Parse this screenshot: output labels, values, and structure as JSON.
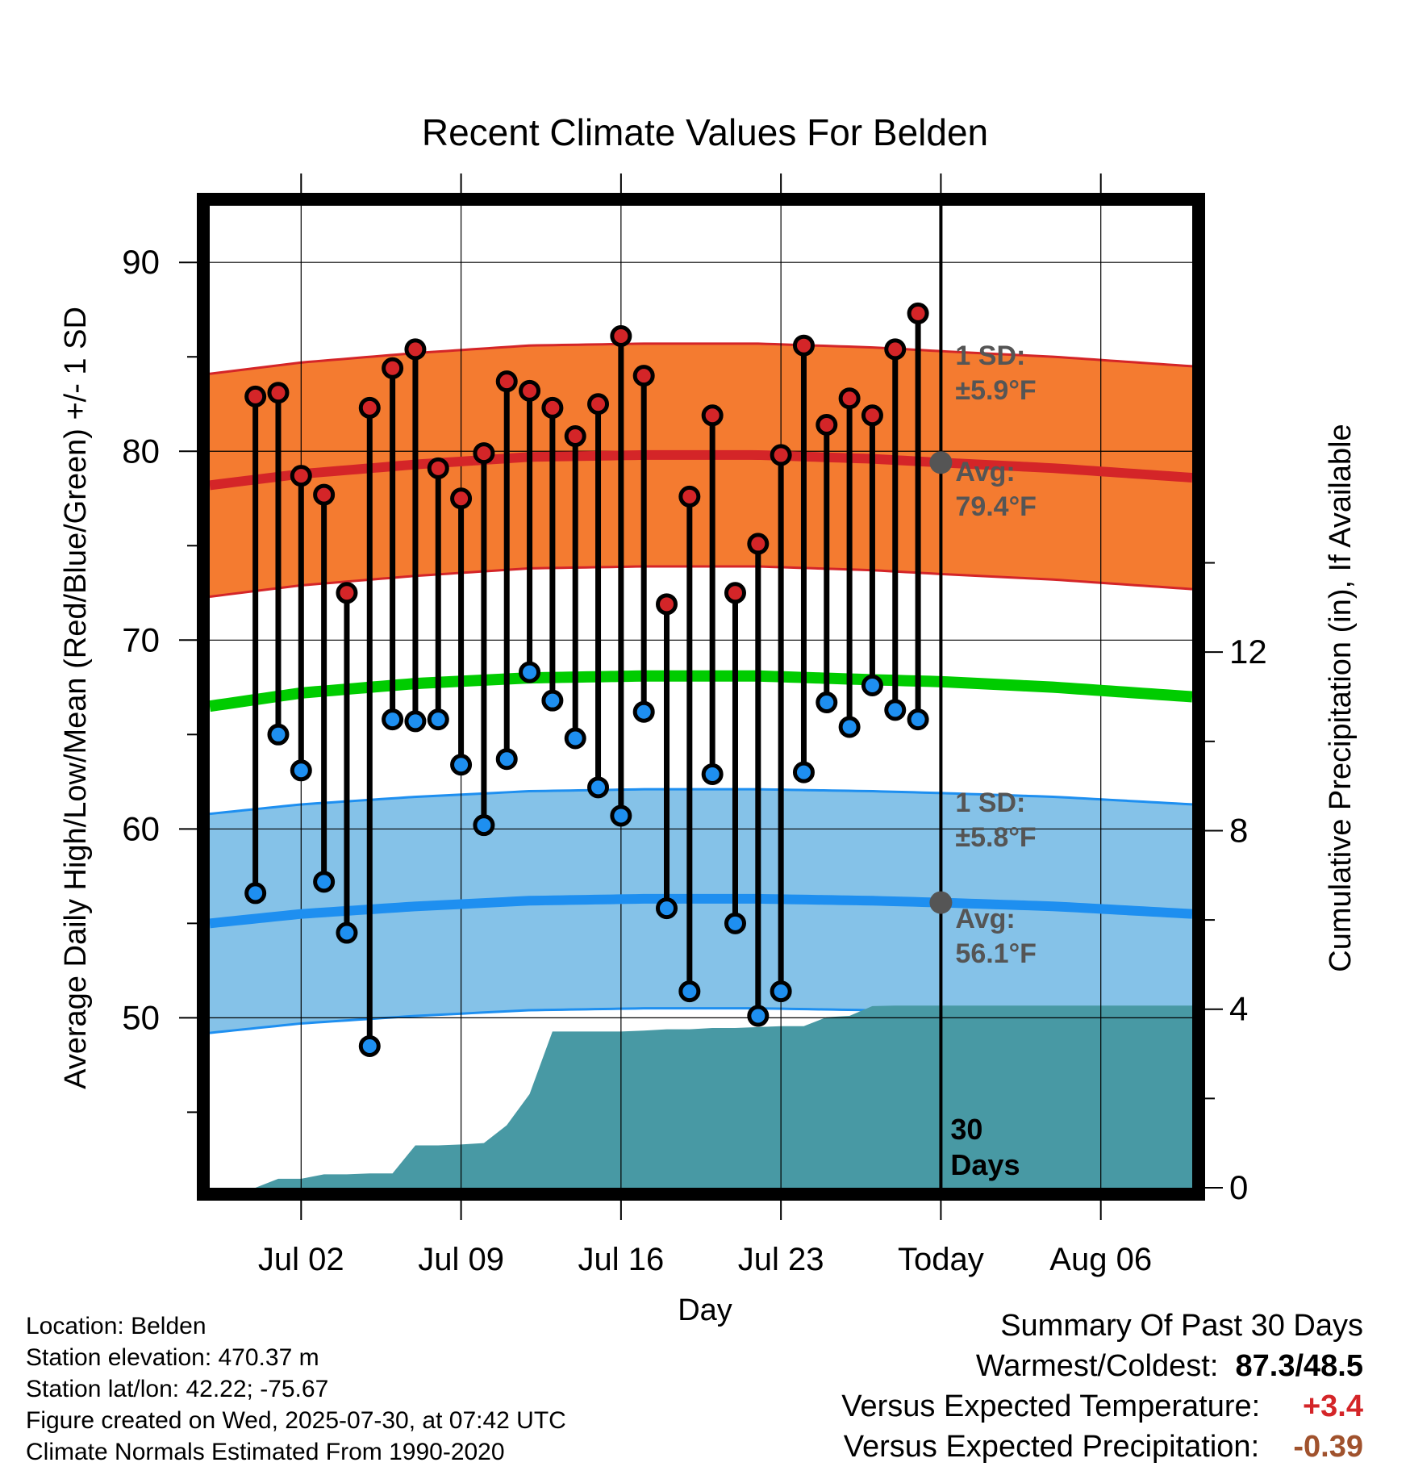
{
  "chart_data": {
    "type": "line",
    "title": "Recent Climate Values For Belden",
    "xlabel": "Day",
    "ylabel": "Average Daily High/Low/Mean (Red/Blue/Green) +/- 1 SD",
    "y2label": "Cumulative Precipitation (in), If Available",
    "x_ticks": [
      "Jul 02",
      "Jul 09",
      "Jul 16",
      "Jul 23",
      "Today",
      "Aug 06"
    ],
    "y_ticks": [
      50,
      60,
      70,
      80,
      90
    ],
    "y2_ticks": [
      0,
      4,
      8,
      12
    ],
    "ylim": [
      41,
      93
    ],
    "y2lim": [
      0,
      22
    ],
    "x_range": [
      "2025-06-28",
      "2025-08-10"
    ],
    "today": "2025-07-30",
    "dates": [
      "2025-06-30",
      "2025-07-01",
      "2025-07-02",
      "2025-07-03",
      "2025-07-04",
      "2025-07-05",
      "2025-07-06",
      "2025-07-07",
      "2025-07-08",
      "2025-07-09",
      "2025-07-10",
      "2025-07-11",
      "2025-07-12",
      "2025-07-13",
      "2025-07-14",
      "2025-07-15",
      "2025-07-16",
      "2025-07-17",
      "2025-07-18",
      "2025-07-19",
      "2025-07-20",
      "2025-07-21",
      "2025-07-22",
      "2025-07-23",
      "2025-07-24",
      "2025-07-25",
      "2025-07-26",
      "2025-07-27",
      "2025-07-28",
      "2025-07-29"
    ],
    "daily_high": [
      82.9,
      83.1,
      78.7,
      77.7,
      72.5,
      82.3,
      84.4,
      85.4,
      79.1,
      77.5,
      79.9,
      83.7,
      83.2,
      82.3,
      80.8,
      82.5,
      86.1,
      84.0,
      71.9,
      77.6,
      81.9,
      72.5,
      75.1,
      79.8,
      85.6,
      81.4,
      82.8,
      81.9,
      85.4,
      87.3
    ],
    "daily_low": [
      56.6,
      65.0,
      63.1,
      57.2,
      54.5,
      48.5,
      65.8,
      65.7,
      65.8,
      63.4,
      60.2,
      63.7,
      68.3,
      66.8,
      64.8,
      62.2,
      60.7,
      66.2,
      55.8,
      51.4,
      62.9,
      55.0,
      50.1,
      51.4,
      63.0,
      66.7,
      65.4,
      67.6,
      66.3,
      65.8
    ],
    "normal_dates": [
      "2025-06-28",
      "2025-07-02",
      "2025-07-07",
      "2025-07-12",
      "2025-07-17",
      "2025-07-22",
      "2025-07-27",
      "2025-07-30",
      "2025-08-04",
      "2025-08-10"
    ],
    "normal_high": [
      78.2,
      78.8,
      79.3,
      79.7,
      79.8,
      79.8,
      79.6,
      79.4,
      79.1,
      78.6
    ],
    "normal_low": [
      55.0,
      55.5,
      55.9,
      56.2,
      56.3,
      56.3,
      56.2,
      56.1,
      55.9,
      55.5
    ],
    "normal_mean": [
      66.5,
      67.2,
      67.7,
      68.0,
      68.1,
      68.1,
      67.9,
      67.8,
      67.5,
      67.0
    ],
    "high_sd": 5.9,
    "low_sd": 5.8,
    "precip_dates": [
      "2025-06-28",
      "2025-06-29",
      "2025-06-30",
      "2025-07-01",
      "2025-07-02",
      "2025-07-03",
      "2025-07-04",
      "2025-07-05",
      "2025-07-06",
      "2025-07-07",
      "2025-07-08",
      "2025-07-09",
      "2025-07-10",
      "2025-07-11",
      "2025-07-12",
      "2025-07-13",
      "2025-07-14",
      "2025-07-15",
      "2025-07-16",
      "2025-07-17",
      "2025-07-18",
      "2025-07-19",
      "2025-07-20",
      "2025-07-21",
      "2025-07-22",
      "2025-07-23",
      "2025-07-24",
      "2025-07-25",
      "2025-07-26",
      "2025-07-27",
      "2025-07-28",
      "2025-07-29",
      "2025-07-30",
      "2025-08-10"
    ],
    "cumulative_precip": [
      0.0,
      0.0,
      0.0,
      0.2,
      0.2,
      0.3,
      0.3,
      0.32,
      0.32,
      0.95,
      0.95,
      0.97,
      1.0,
      1.4,
      2.1,
      3.5,
      3.5,
      3.5,
      3.5,
      3.52,
      3.55,
      3.55,
      3.58,
      3.58,
      3.6,
      3.62,
      3.62,
      3.82,
      3.85,
      4.07,
      4.08,
      4.08,
      4.08,
      4.08
    ],
    "annotations": {
      "high_sd_label": "1 SD:",
      "high_sd_value": "±5.9°F",
      "high_avg_label": "Avg:",
      "high_avg_value": "79.4°F",
      "low_sd_label": "1 SD:",
      "low_sd_value": "±5.8°F",
      "low_avg_label": "Avg:",
      "low_avg_value": "56.1°F",
      "days_number": "30",
      "days_word": "Days"
    },
    "colors": {
      "high_band": "#f47b30",
      "high_line": "#d42528",
      "low_band": "#85c2e8",
      "low_line": "#1e8ff0",
      "mean_line": "#00cc00",
      "precip": "#4899a4",
      "high_marker": "#d42528",
      "low_marker": "#1e8ff0",
      "annotation": "#555555"
    }
  },
  "info": {
    "location": "Location: Belden",
    "elevation": "Station elevation: 470.37 m",
    "latlon": "Station lat/lon: 42.22; -75.67",
    "created": "Figure created on Wed, 2025-07-30, at 07:42 UTC",
    "normals": "Climate Normals Estimated From 1990-2020"
  },
  "summary": {
    "heading": "Summary Of Past 30 Days",
    "warm_cold_label": "Warmest/Coldest:",
    "warm_cold_value": "87.3/48.5",
    "temp_label": "Versus Expected Temperature:",
    "temp_value": "+3.4",
    "temp_color": "#d42528",
    "precip_label": "Versus Expected Precipitation:",
    "precip_value": "-0.39",
    "precip_color": "#a0522d"
  }
}
